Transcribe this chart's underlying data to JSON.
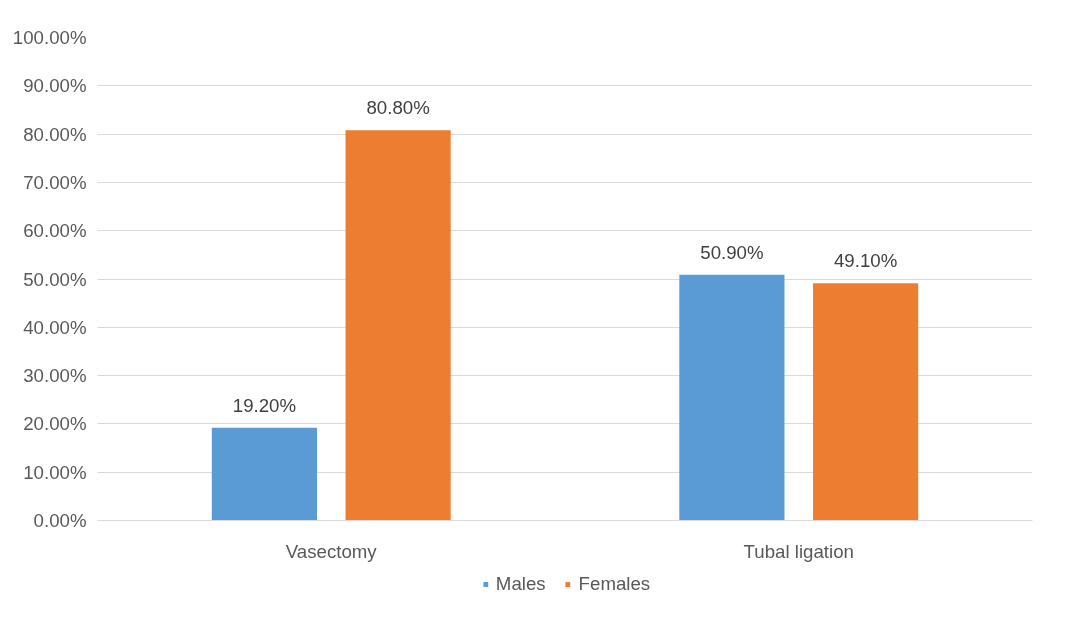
{
  "chart_data": {
    "type": "bar",
    "categories": [
      "Vasectomy",
      "Tubal ligation"
    ],
    "series": [
      {
        "name": "Males",
        "color": "#5b9bd5",
        "values": [
          19.2,
          50.9
        ],
        "value_labels": [
          "19.20%",
          "50.90%"
        ]
      },
      {
        "name": "Females",
        "color": "#ed7d31",
        "values": [
          80.8,
          49.1
        ],
        "value_labels": [
          "80.80%",
          "49.10%"
        ]
      }
    ],
    "ylim": [
      0,
      100
    ],
    "yticks": [
      {
        "value": 0,
        "label": "0.00%"
      },
      {
        "value": 10,
        "label": "10.00%"
      },
      {
        "value": 20,
        "label": "20.00%"
      },
      {
        "value": 30,
        "label": "30.00%"
      },
      {
        "value": 40,
        "label": "40.00%"
      },
      {
        "value": 50,
        "label": "50.00%"
      },
      {
        "value": 60,
        "label": "60.00%"
      },
      {
        "value": 70,
        "label": "70.00%"
      },
      {
        "value": 80,
        "label": "80.00%"
      },
      {
        "value": 90,
        "label": "90.00%"
      },
      {
        "value": 100,
        "label": "100.00%"
      }
    ],
    "grid": "y",
    "legend": "bottom"
  }
}
